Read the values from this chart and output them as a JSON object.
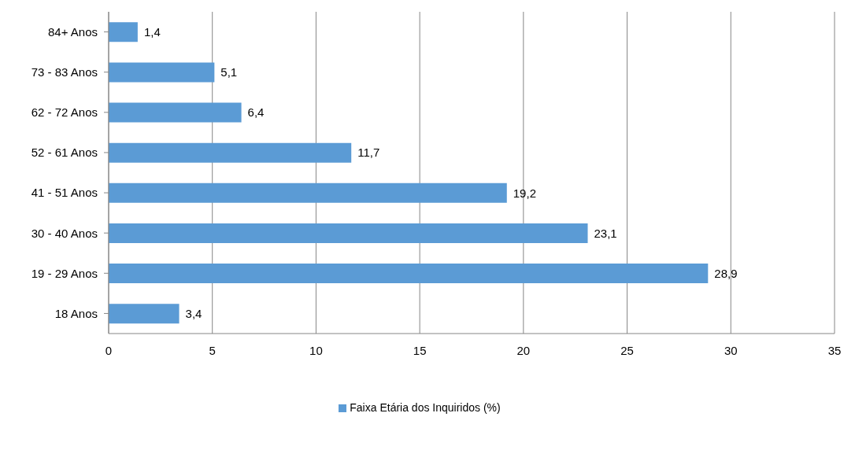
{
  "chart_data": {
    "type": "bar",
    "orientation": "horizontal",
    "categories": [
      "84+ Anos",
      "73 - 83 Anos",
      "62 - 72 Anos",
      "52 - 61 Anos",
      "41 - 51 Anos",
      "30 - 40 Anos",
      "19 - 29 Anos",
      "18 Anos"
    ],
    "series": [
      {
        "name": "Faixa Etária dos Inquiridos (%)",
        "color": "#5b9bd5",
        "values": [
          1.4,
          5.1,
          6.4,
          11.7,
          19.2,
          23.1,
          28.9,
          3.4
        ],
        "value_labels": [
          "1,4",
          "5,1",
          "6,4",
          "11,7",
          "19,2",
          "23,1",
          "28,9",
          "3,4"
        ]
      }
    ],
    "xlim": [
      0,
      35
    ],
    "xticks": [
      0,
      5,
      10,
      15,
      20,
      25,
      30,
      35
    ],
    "grid": "x",
    "legend": "bottom"
  }
}
